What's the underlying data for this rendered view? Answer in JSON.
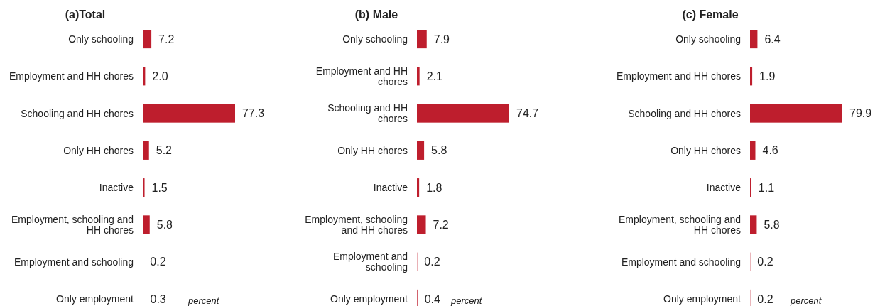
{
  "chart_data": [
    {
      "type": "bar",
      "orientation": "horizontal",
      "title": "(a)Total",
      "categories": [
        "Only schooling",
        "Employment and HH chores",
        "Schooling and HH chores",
        "Only HH chores",
        "Inactive",
        "Employment, schooling and HH chores",
        "Employment and schooling",
        "Only employment"
      ],
      "values": [
        7.2,
        2.0,
        77.3,
        5.2,
        1.5,
        5.8,
        0.2,
        0.3
      ],
      "value_labels": [
        "7.2",
        "2.0",
        "77.3",
        "5.2",
        "1.5",
        "5.8",
        "0.2",
        "0.3"
      ],
      "color": "#be1e2d",
      "annotations": [
        "percent"
      ]
    },
    {
      "type": "bar",
      "orientation": "horizontal",
      "title": "(b) Male",
      "categories": [
        "Only schooling",
        "Employment and HH chores",
        "Schooling and HH chores",
        "Only HH chores",
        "Inactive",
        "Employment, schooling and HH chores",
        "Employment and schooling",
        "Only employment"
      ],
      "values": [
        7.9,
        2.1,
        74.7,
        5.8,
        1.8,
        7.2,
        0.2,
        0.4
      ],
      "data_labels": true,
      "color": "#be1e2d",
      "annotations": [
        "percent"
      ]
    },
    {
      "type": "bar",
      "orientation": "horizontal",
      "title": "(c) Female",
      "categories": [
        "Only schooling",
        "Employment and HH chores",
        "Schooling and HH chores",
        "Only HH chores",
        "Inactive",
        "Employment, schooling and HH chores",
        "Employment and schooling",
        "Only employment"
      ],
      "values": [
        6.4,
        1.9,
        79.9,
        4.6,
        1.1,
        5.8,
        0.2,
        0.2
      ],
      "data_labels": true,
      "color": "#be1e2d",
      "annotations": [
        "percent"
      ]
    }
  ]
}
